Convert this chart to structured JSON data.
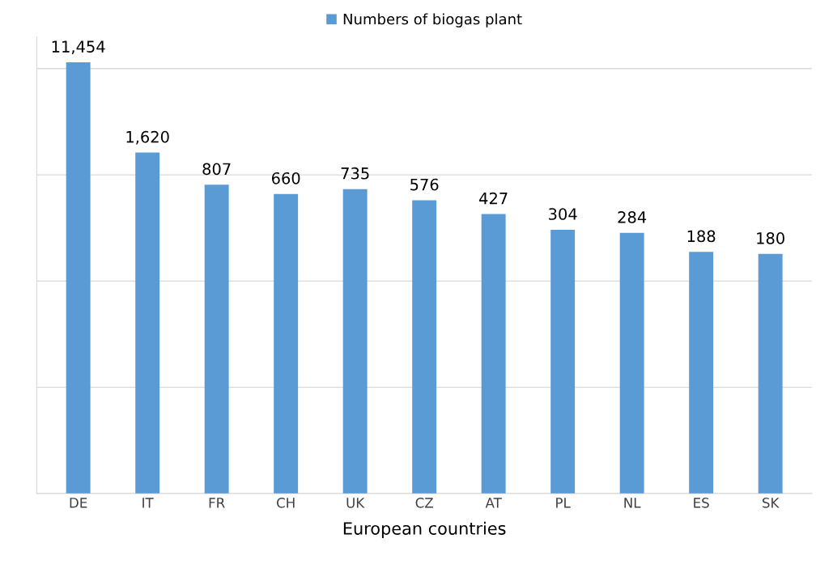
{
  "chart_data": {
    "type": "bar",
    "xlabel": "European countries",
    "categories": [
      "DE",
      "IT",
      "FR",
      "CH",
      "UK",
      "CZ",
      "AT",
      "PL",
      "NL",
      "ES",
      "SK"
    ],
    "series": [
      {
        "name": "Numbers of biogas plant",
        "color": "#5b9bd5",
        "values": [
          11454,
          1620,
          807,
          660,
          735,
          576,
          427,
          304,
          284,
          188,
          180
        ],
        "value_labels": [
          "11,454",
          "1,620",
          "807",
          "660",
          "735",
          "576",
          "427",
          "304",
          "284",
          "188",
          "180"
        ]
      }
    ],
    "log": true,
    "ylim": [
      1,
      20000
    ],
    "yticks": [
      {
        "value": 1,
        "label": null
      },
      {
        "value": 10,
        "label": null
      },
      {
        "value": 100,
        "label": null
      },
      {
        "value": 1000,
        "label": null
      },
      {
        "value": 10000,
        "label": null
      }
    ],
    "tick_labels": "x",
    "grid": "y",
    "legend": "top"
  }
}
